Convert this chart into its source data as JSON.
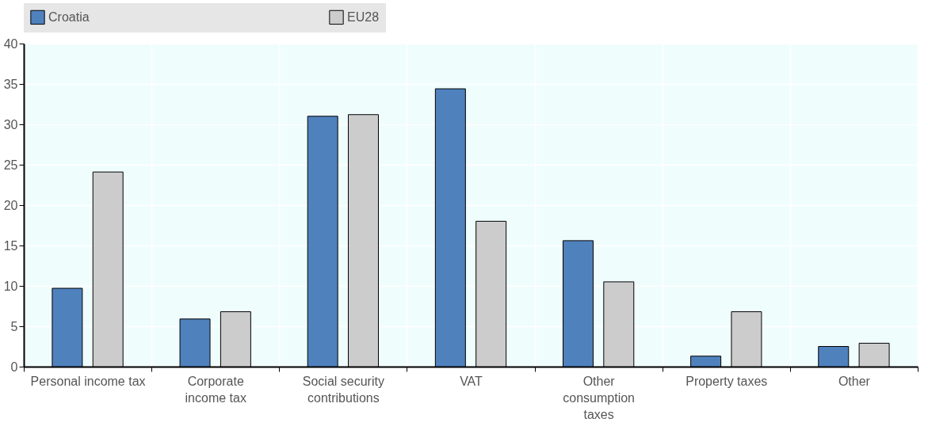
{
  "chart_data": {
    "type": "bar",
    "categories": [
      "Personal income tax",
      "Corporate income tax",
      "Social security contributions",
      "VAT",
      "Other consumption taxes",
      "Property taxes",
      "Other"
    ],
    "series": [
      {
        "name": "Croatia",
        "color": "#4f81bd",
        "values": [
          9.7,
          5.9,
          31.0,
          34.4,
          15.6,
          1.3,
          2.5
        ]
      },
      {
        "name": "EU28",
        "color": "#cccccc",
        "values": [
          24.1,
          6.8,
          31.2,
          18.0,
          10.5,
          6.8,
          2.9
        ]
      }
    ],
    "ylim": [
      0,
      40
    ],
    "yticks": [
      0,
      5,
      10,
      15,
      20,
      25,
      30,
      35,
      40
    ],
    "grid": true,
    "legend": "top"
  }
}
